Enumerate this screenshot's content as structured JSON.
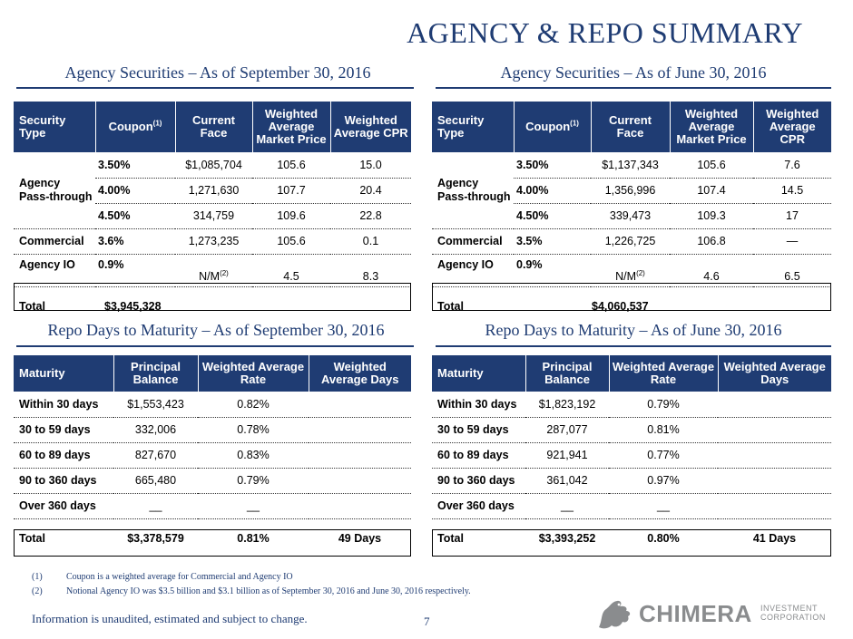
{
  "page_title": "AGENCY & REPO SUMMARY",
  "agency_sep": {
    "title": "Agency Securities – As of September 30, 2016",
    "headers": {
      "security_type": "Security Type",
      "coupon": "Coupon",
      "coupon_note": "(1)",
      "current_face": "Current Face",
      "wamp": "Weighted Average Market Price",
      "wacpr": "Weighted Average CPR"
    },
    "group_label": "Agency Pass-through",
    "passthrough_rows": [
      {
        "coupon": "3.50%",
        "face": "$1,085,704",
        "price": "105.6",
        "cpr": "15.0"
      },
      {
        "coupon": "4.00%",
        "face": "1,271,630",
        "price": "107.7",
        "cpr": "20.4"
      },
      {
        "coupon": "4.50%",
        "face": "314,759",
        "price": "109.6",
        "cpr": "22.8"
      }
    ],
    "commercial": {
      "label": "Commercial",
      "coupon": "3.6%",
      "face": "1,273,235",
      "price": "105.6",
      "cpr": "0.1"
    },
    "agency_io": {
      "label": "Agency IO",
      "coupon": "0.9%",
      "face": "N/M",
      "face_note": "(2)",
      "price": "4.5",
      "cpr": "8.3"
    },
    "total": {
      "label": "Total",
      "face": "$3,945,328"
    }
  },
  "agency_jun": {
    "title": "Agency Securities – As of June 30, 2016",
    "headers": {
      "security_type": "Security Type",
      "coupon": "Coupon",
      "coupon_note": "(1)",
      "current_face": "Current Face",
      "wamp": "Weighted Average Market Price",
      "wacpr": "Weighted Average CPR"
    },
    "group_label": "Agency Pass-through",
    "passthrough_rows": [
      {
        "coupon": "3.50%",
        "face": "$1,137,343",
        "price": "105.6",
        "cpr": "7.6"
      },
      {
        "coupon": "4.00%",
        "face": "1,356,996",
        "price": "107.4",
        "cpr": "14.5"
      },
      {
        "coupon": "4.50%",
        "face": "339,473",
        "price": "109.3",
        "cpr": "17"
      }
    ],
    "commercial": {
      "label": "Commercial",
      "coupon": "3.5%",
      "face": "1,226,725",
      "price": "106.8",
      "cpr": "—"
    },
    "agency_io": {
      "label": "Agency IO",
      "coupon": "0.9%",
      "face": "N/M",
      "face_note": "(2)",
      "price": "4.6",
      "cpr": "6.5"
    },
    "total": {
      "label": "Total",
      "face": "$4,060,537"
    }
  },
  "repo_sep": {
    "title": "Repo Days to Maturity – As of September 30, 2016",
    "headers": {
      "maturity": "Maturity",
      "principal": "Principal Balance",
      "rate": "Weighted Average Rate",
      "days": "Weighted Average Days"
    },
    "rows": [
      {
        "maturity": "Within 30 days",
        "principal": "$1,553,423",
        "rate": "0.82%"
      },
      {
        "maturity": "30 to 59 days",
        "principal": "332,006",
        "rate": "0.78%"
      },
      {
        "maturity": "60 to 89 days",
        "principal": "827,670",
        "rate": "0.83%"
      },
      {
        "maturity": "90 to 360 days",
        "principal": "665,480",
        "rate": "0.79%"
      },
      {
        "maturity": "Over 360 days",
        "principal": "__",
        "rate": "__"
      }
    ],
    "total": {
      "label": "Total",
      "principal": "$3,378,579",
      "rate": "0.81%",
      "days": "49 Days"
    }
  },
  "repo_jun": {
    "title": "Repo Days to Maturity – As of June 30, 2016",
    "headers": {
      "maturity": "Maturity",
      "principal": "Principal Balance",
      "rate": "Weighted Average Rate",
      "days": "Weighted Average Days"
    },
    "rows": [
      {
        "maturity": "Within 30 days",
        "principal": "$1,823,192",
        "rate": "0.79%"
      },
      {
        "maturity": "30 to 59 days",
        "principal": "287,077",
        "rate": "0.81%"
      },
      {
        "maturity": "60 to 89 days",
        "principal": "921,941",
        "rate": "0.77%"
      },
      {
        "maturity": "90 to 360 days",
        "principal": "361,042",
        "rate": "0.97%"
      },
      {
        "maturity": "Over 360 days",
        "principal": "__",
        "rate": "__"
      }
    ],
    "total": {
      "label": "Total",
      "principal": "$3,393,252",
      "rate": "0.80%",
      "days": "41 Days"
    }
  },
  "footnotes": [
    {
      "num": "(1)",
      "text": "Coupon is a weighted average for Commercial and Agency IO"
    },
    {
      "num": "(2)",
      "text": "Notional Agency IO was $3.5 billion and $3.1 billion as of September 30, 2016 and June 30, 2016 respectively."
    }
  ],
  "disclaimer": "Information is unaudited, estimated and subject to change.",
  "page_number": "7",
  "logo": {
    "name": "CHIMERA",
    "sub1": "INVESTMENT",
    "sub2": "CORPORATION",
    "icon": "chimera-logo-icon"
  },
  "colors": {
    "navy": "#1f3c73",
    "logo_gray": "#8a8c8e"
  }
}
